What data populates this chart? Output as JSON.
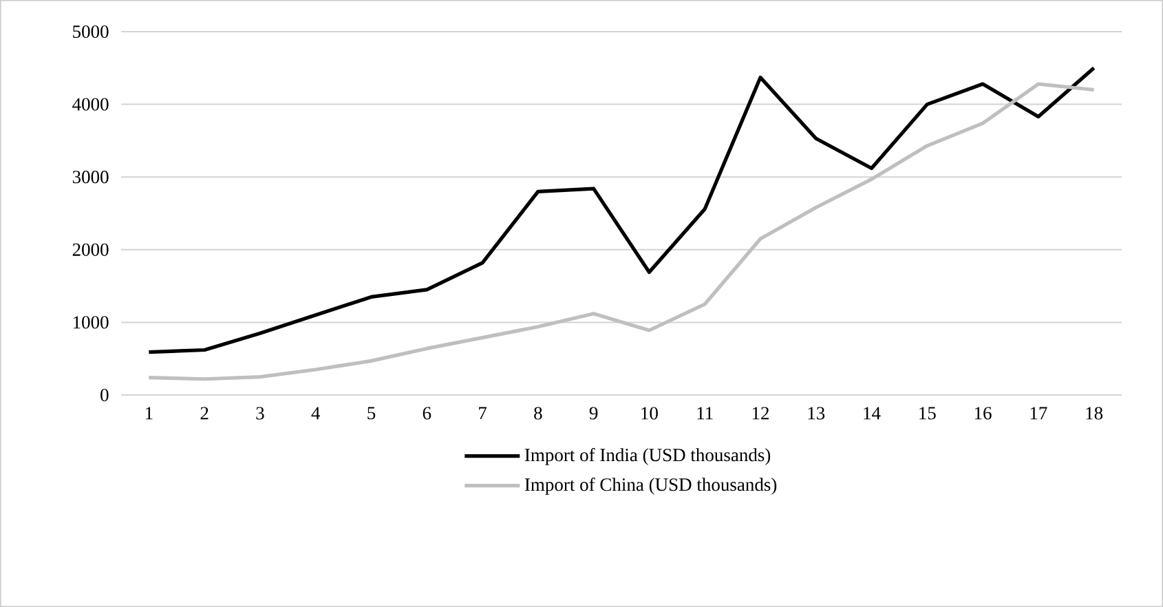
{
  "chart_data": {
    "type": "line",
    "categories": [
      "1",
      "2",
      "3",
      "4",
      "5",
      "6",
      "7",
      "8",
      "9",
      "10",
      "11",
      "12",
      "13",
      "14",
      "15",
      "16",
      "17",
      "18"
    ],
    "series": [
      {
        "name": "Import of India (USD thousands)",
        "color": "#000000",
        "values": [
          590,
          620,
          850,
          1100,
          1350,
          1450,
          1820,
          2800,
          2840,
          1690,
          2560,
          4370,
          3530,
          3120,
          4000,
          4280,
          3830,
          4500
        ]
      },
      {
        "name": "Import of China (USD thousands)",
        "color": "#bfbfbf",
        "values": [
          240,
          220,
          250,
          350,
          470,
          640,
          790,
          940,
          1120,
          890,
          1250,
          2150,
          2580,
          2970,
          3430,
          3740,
          4280,
          4200
        ]
      }
    ],
    "ylim": [
      0,
      5000
    ],
    "yticks": [
      0,
      1000,
      2000,
      3000,
      4000,
      5000
    ],
    "grid": "y",
    "legend": "bottom",
    "marker": "none",
    "line_style": "solid"
  }
}
